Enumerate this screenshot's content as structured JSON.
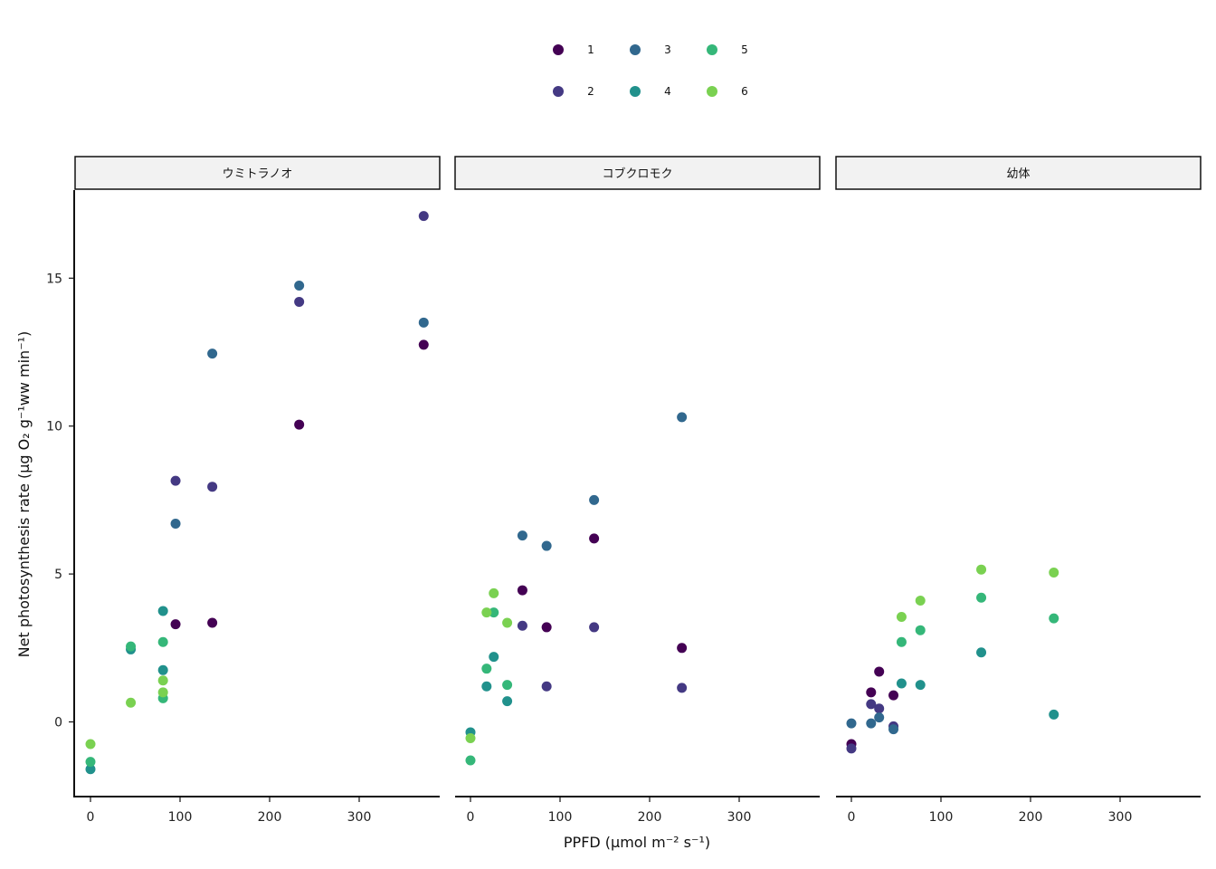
{
  "chart_data": {
    "type": "scatter",
    "layout": "facets",
    "xlabel": "PPFD (μmol m⁻² s⁻¹)",
    "ylabel": "Net photosynthesis rate (μg O₂ g⁻¹ww min⁻¹)",
    "xlim": [
      -18,
      390
    ],
    "ylim": [
      -2.5,
      18
    ],
    "x_ticks": [
      0,
      100,
      200,
      300
    ],
    "y_ticks": [
      0,
      5,
      10,
      15
    ],
    "grid": false,
    "legend": {
      "position": "top",
      "items": [
        {
          "label": "1",
          "color": "#440154"
        },
        {
          "label": "2",
          "color": "#443983"
        },
        {
          "label": "3",
          "color": "#31688e"
        },
        {
          "label": "4",
          "color": "#21918c"
        },
        {
          "label": "5",
          "color": "#35b779"
        },
        {
          "label": "6",
          "color": "#7ad151"
        }
      ]
    },
    "facets": [
      {
        "label": "ウミトラノオ",
        "points": [
          {
            "s": 1,
            "x": 95,
            "y": 3.3
          },
          {
            "s": 1,
            "x": 136,
            "y": 3.35
          },
          {
            "s": 1,
            "x": 233,
            "y": 10.05
          },
          {
            "s": 1,
            "x": 372,
            "y": 12.75
          },
          {
            "s": 2,
            "x": 95,
            "y": 8.15
          },
          {
            "s": 2,
            "x": 136,
            "y": 7.95
          },
          {
            "s": 2,
            "x": 233,
            "y": 14.2
          },
          {
            "s": 2,
            "x": 372,
            "y": 17.1
          },
          {
            "s": 3,
            "x": 95,
            "y": 6.7
          },
          {
            "s": 3,
            "x": 136,
            "y": 12.45
          },
          {
            "s": 3,
            "x": 233,
            "y": 14.75
          },
          {
            "s": 3,
            "x": 372,
            "y": 13.5
          },
          {
            "s": 4,
            "x": 0,
            "y": -1.6
          },
          {
            "s": 4,
            "x": 45,
            "y": 2.45
          },
          {
            "s": 4,
            "x": 81,
            "y": 3.75
          },
          {
            "s": 4,
            "x": 81,
            "y": 1.75
          },
          {
            "s": 5,
            "x": 0,
            "y": -1.35
          },
          {
            "s": 5,
            "x": 45,
            "y": 2.55
          },
          {
            "s": 5,
            "x": 81,
            "y": 2.7
          },
          {
            "s": 5,
            "x": 81,
            "y": 0.8
          },
          {
            "s": 6,
            "x": 0,
            "y": -0.75
          },
          {
            "s": 6,
            "x": 45,
            "y": 0.65
          },
          {
            "s": 6,
            "x": 81,
            "y": 1.4
          },
          {
            "s": 6,
            "x": 81,
            "y": 1.0
          }
        ]
      },
      {
        "label": "コブクロモク",
        "points": [
          {
            "s": 1,
            "x": 58,
            "y": 4.45
          },
          {
            "s": 1,
            "x": 85,
            "y": 3.2
          },
          {
            "s": 1,
            "x": 138,
            "y": 6.2
          },
          {
            "s": 1,
            "x": 236,
            "y": 2.5
          },
          {
            "s": 2,
            "x": 58,
            "y": 3.25
          },
          {
            "s": 2,
            "x": 85,
            "y": 1.2
          },
          {
            "s": 2,
            "x": 138,
            "y": 3.2
          },
          {
            "s": 2,
            "x": 236,
            "y": 1.15
          },
          {
            "s": 3,
            "x": 58,
            "y": 6.3
          },
          {
            "s": 3,
            "x": 85,
            "y": 5.95
          },
          {
            "s": 3,
            "x": 138,
            "y": 7.5
          },
          {
            "s": 3,
            "x": 236,
            "y": 10.3
          },
          {
            "s": 4,
            "x": 0,
            "y": -0.35
          },
          {
            "s": 4,
            "x": 18,
            "y": 1.2
          },
          {
            "s": 4,
            "x": 26,
            "y": 2.2
          },
          {
            "s": 4,
            "x": 41,
            "y": 0.7
          },
          {
            "s": 5,
            "x": 0,
            "y": -1.3
          },
          {
            "s": 5,
            "x": 18,
            "y": 1.8
          },
          {
            "s": 5,
            "x": 26,
            "y": 3.7
          },
          {
            "s": 5,
            "x": 41,
            "y": 1.25
          },
          {
            "s": 6,
            "x": 0,
            "y": -0.55
          },
          {
            "s": 6,
            "x": 18,
            "y": 3.7
          },
          {
            "s": 6,
            "x": 26,
            "y": 4.35
          },
          {
            "s": 6,
            "x": 41,
            "y": 3.35
          }
        ]
      },
      {
        "label": "幼体",
        "points": [
          {
            "s": 1,
            "x": 0,
            "y": -0.75
          },
          {
            "s": 1,
            "x": 22,
            "y": 1.0
          },
          {
            "s": 1,
            "x": 31,
            "y": 1.7
          },
          {
            "s": 1,
            "x": 47,
            "y": 0.9
          },
          {
            "s": 2,
            "x": 0,
            "y": -0.9
          },
          {
            "s": 2,
            "x": 22,
            "y": 0.6
          },
          {
            "s": 2,
            "x": 31,
            "y": 0.45
          },
          {
            "s": 2,
            "x": 47,
            "y": -0.15
          },
          {
            "s": 3,
            "x": 0,
            "y": -0.05
          },
          {
            "s": 3,
            "x": 22,
            "y": -0.05
          },
          {
            "s": 3,
            "x": 31,
            "y": 0.15
          },
          {
            "s": 3,
            "x": 47,
            "y": -0.25
          },
          {
            "s": 4,
            "x": 56,
            "y": 1.3
          },
          {
            "s": 4,
            "x": 77,
            "y": 1.25
          },
          {
            "s": 4,
            "x": 145,
            "y": 2.35
          },
          {
            "s": 4,
            "x": 226,
            "y": 0.25
          },
          {
            "s": 5,
            "x": 56,
            "y": 2.7
          },
          {
            "s": 5,
            "x": 77,
            "y": 3.1
          },
          {
            "s": 5,
            "x": 145,
            "y": 4.2
          },
          {
            "s": 5,
            "x": 226,
            "y": 3.5
          },
          {
            "s": 6,
            "x": 56,
            "y": 3.55
          },
          {
            "s": 6,
            "x": 77,
            "y": 4.1
          },
          {
            "s": 6,
            "x": 145,
            "y": 5.15
          },
          {
            "s": 6,
            "x": 226,
            "y": 5.05
          }
        ]
      }
    ]
  }
}
